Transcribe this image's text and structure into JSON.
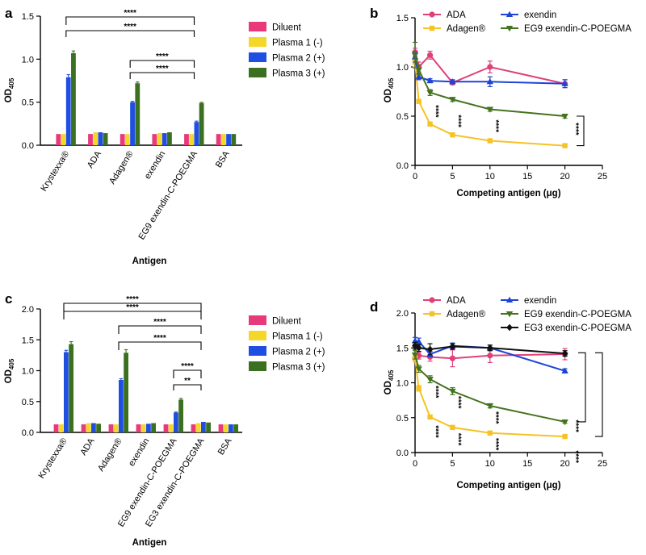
{
  "colors": {
    "Diluent": "#e8397a",
    "Plasma 1 (-)": "#f5d72a",
    "Plasma 2 (+)": "#1f4fe0",
    "Plasma 3 (+)": "#3b7020",
    "ADA": "#e0407a",
    "Adagen": "#f6c225",
    "exendin": "#1c44d6",
    "EG9 exendin-C-POEGMA": "#44731f",
    "EG3 exendin-C-POEGMA": "#111111"
  },
  "chart_data": [
    {
      "panel": "a",
      "type": "bar",
      "xlabel": "Antigen",
      "ylabel": "OD",
      "ylabel_sub": "405",
      "ylim": [
        0,
        1.5
      ],
      "yticks": [
        "0.0",
        "0.5",
        "1.0",
        "1.5"
      ],
      "categories": [
        "Krystexxa®",
        "ADA",
        "Adagen®",
        "exendin",
        "EG9 exendin-C-POEGMA",
        "BSA"
      ],
      "series": [
        {
          "name": "Diluent",
          "values": [
            0.13,
            0.13,
            0.13,
            0.13,
            0.13,
            0.13
          ],
          "errors": [
            0.004,
            0.004,
            0.004,
            0.004,
            0.004,
            0.004
          ]
        },
        {
          "name": "Plasma 1 (-)",
          "values": [
            0.13,
            0.15,
            0.13,
            0.14,
            0.13,
            0.13
          ],
          "errors": [
            0.004,
            0.005,
            0.004,
            0.004,
            0.004,
            0.004
          ]
        },
        {
          "name": "Plasma 2 (+)",
          "values": [
            0.79,
            0.15,
            0.5,
            0.14,
            0.27,
            0.13
          ],
          "errors": [
            0.03,
            0.005,
            0.01,
            0.004,
            0.01,
            0.004
          ]
        },
        {
          "name": "Plasma 3 (+)",
          "values": [
            1.07,
            0.14,
            0.72,
            0.15,
            0.49,
            0.13
          ],
          "errors": [
            0.025,
            0.005,
            0.015,
            0.005,
            0.008,
            0.004
          ]
        }
      ],
      "legend": [
        "Diluent",
        "Plasma 1 (-)",
        "Plasma 2 (+)",
        "Plasma 3 (+)"
      ],
      "brackets": [
        {
          "from": 0,
          "to": 4,
          "label": "****"
        },
        {
          "from": 0,
          "to": 4,
          "label": "****"
        },
        {
          "from": 2,
          "to": 4,
          "label": "****"
        },
        {
          "from": 2,
          "to": 4,
          "label": "****"
        }
      ]
    },
    {
      "panel": "b",
      "type": "line",
      "xlabel": "Competing antigen (μg)",
      "ylabel": "OD",
      "ylabel_sub": "405",
      "xlim": [
        0,
        25
      ],
      "ylim": [
        0,
        1.5
      ],
      "xticks": [
        "0",
        "5",
        "10",
        "15",
        "20",
        "25"
      ],
      "yticks": [
        "0.0",
        "0.5",
        "1.0",
        "1.5"
      ],
      "x": [
        0,
        0.5,
        2,
        5,
        10,
        20
      ],
      "series": [
        {
          "name": "ADA",
          "marker": "circle",
          "values": [
            1.15,
            1.0,
            1.12,
            0.84,
            1.0,
            0.83
          ],
          "errors": [
            0.04,
            0.05,
            0.04,
            0.02,
            0.06,
            0.04
          ]
        },
        {
          "name": "Adagen®",
          "marker": "square",
          "values": [
            1.05,
            0.65,
            0.42,
            0.31,
            0.25,
            0.2
          ],
          "errors": [
            0.05,
            0.02,
            0.02,
            0.01,
            0.01,
            0.01
          ]
        },
        {
          "name": "exendin",
          "marker": "triangle-up",
          "values": [
            1.1,
            0.9,
            0.86,
            0.85,
            0.85,
            0.83
          ],
          "errors": [
            0.05,
            0.03,
            0.02,
            0.02,
            0.05,
            0.04
          ]
        },
        {
          "name": "EG9 exendin-C-POEGMA",
          "marker": "triangle-down",
          "values": [
            1.12,
            0.97,
            0.74,
            0.67,
            0.57,
            0.5
          ],
          "errors": [
            0.13,
            0.05,
            0.03,
            0.02,
            0.02,
            0.02
          ]
        }
      ],
      "legend": [
        "ADA",
        "Adagen®",
        "exendin",
        "EG9 exendin-C-POEGMA"
      ],
      "annotations": [
        {
          "x": 2,
          "y": 0.55,
          "label": "****"
        },
        {
          "x": 5,
          "y": 0.45,
          "label": "****"
        },
        {
          "x": 10,
          "y": 0.4,
          "label": "****"
        },
        {
          "x": 20.7,
          "y": 0.37,
          "label": "****"
        }
      ],
      "right_brackets": [
        {
          "y_top": 0.5,
          "y_bottom": 0.2
        }
      ]
    },
    {
      "panel": "c",
      "type": "bar",
      "xlabel": "Antigen",
      "ylabel": "OD",
      "ylabel_sub": "405",
      "ylim": [
        0,
        2.0
      ],
      "yticks": [
        "0.0",
        "0.5",
        "1.0",
        "1.5",
        "2.0"
      ],
      "categories": [
        "Krystexxa®",
        "ADA",
        "Adagen®",
        "exendin",
        "EG9 exendin-C-POEGMA",
        "EG3 exendin-C-POEGMA",
        "BSA"
      ],
      "series": [
        {
          "name": "Diluent",
          "values": [
            0.13,
            0.13,
            0.13,
            0.13,
            0.13,
            0.13,
            0.13
          ],
          "errors": [
            0.004,
            0.004,
            0.004,
            0.004,
            0.004,
            0.004,
            0.004
          ]
        },
        {
          "name": "Plasma 1 (-)",
          "values": [
            0.13,
            0.15,
            0.13,
            0.13,
            0.13,
            0.15,
            0.13
          ],
          "errors": [
            0.004,
            0.005,
            0.004,
            0.004,
            0.004,
            0.005,
            0.004
          ]
        },
        {
          "name": "Plasma 2 (+)",
          "values": [
            1.3,
            0.15,
            0.85,
            0.14,
            0.32,
            0.17,
            0.13
          ],
          "errors": [
            0.03,
            0.005,
            0.02,
            0.004,
            0.01,
            0.005,
            0.004
          ]
        },
        {
          "name": "Plasma 3 (+)",
          "values": [
            1.43,
            0.14,
            1.29,
            0.15,
            0.53,
            0.16,
            0.13
          ],
          "errors": [
            0.04,
            0.005,
            0.05,
            0.005,
            0.02,
            0.005,
            0.004
          ]
        }
      ],
      "legend": [
        "Diluent",
        "Plasma 1 (-)",
        "Plasma 2 (+)",
        "Plasma 3 (+)"
      ],
      "brackets": [
        {
          "from": 0,
          "to": 5,
          "label": "****"
        },
        {
          "from": 0,
          "to": 5,
          "label": "****"
        },
        {
          "from": 2,
          "to": 5,
          "label": "****"
        },
        {
          "from": 2,
          "to": 5,
          "label": "****"
        },
        {
          "from": 4,
          "to": 5,
          "label": "****"
        },
        {
          "from": 4,
          "to": 5,
          "label": "**"
        }
      ]
    },
    {
      "panel": "d",
      "type": "line",
      "xlabel": "Competing antigen (μg)",
      "ylabel": "OD",
      "ylabel_sub": "405",
      "xlim": [
        0,
        25
      ],
      "ylim": [
        0,
        2.0
      ],
      "xticks": [
        "0",
        "5",
        "10",
        "15",
        "20",
        "25"
      ],
      "yticks": [
        "0.0",
        "0.5",
        "1.0",
        "1.5",
        "2.0"
      ],
      "x": [
        0,
        0.5,
        2,
        5,
        10,
        20
      ],
      "series": [
        {
          "name": "ADA",
          "marker": "circle",
          "values": [
            1.35,
            1.39,
            1.37,
            1.35,
            1.39,
            1.41
          ],
          "errors": [
            0.05,
            0.05,
            0.06,
            0.12,
            0.1,
            0.08
          ]
        },
        {
          "name": "Adagen®",
          "marker": "square",
          "values": [
            1.35,
            0.92,
            0.51,
            0.36,
            0.28,
            0.23
          ],
          "errors": [
            0.05,
            0.04,
            0.02,
            0.02,
            0.01,
            0.01
          ]
        },
        {
          "name": "exendin",
          "marker": "triangle-up",
          "values": [
            1.6,
            1.59,
            1.41,
            1.53,
            1.5,
            1.17
          ],
          "errors": [
            0.05,
            0.05,
            0.04,
            0.04,
            0.04,
            0.03
          ]
        },
        {
          "name": "EG9 exendin-C-POEGMA",
          "marker": "triangle-down",
          "values": [
            1.4,
            1.2,
            1.05,
            0.88,
            0.67,
            0.44
          ],
          "errors": [
            0.06,
            0.05,
            0.05,
            0.05,
            0.03,
            0.02
          ]
        },
        {
          "name": "EG3 exendin-C-POEGMA",
          "marker": "diamond",
          "values": [
            1.53,
            1.5,
            1.48,
            1.52,
            1.5,
            1.42
          ],
          "errors": [
            0.05,
            0.05,
            0.08,
            0.04,
            0.04,
            0.04
          ]
        }
      ],
      "legend": [
        "ADA",
        "Adagen®",
        "exendin",
        "EG9 exendin-C-POEGMA",
        "EG3 exendin-C-POEGMA"
      ],
      "annotations": [
        {
          "x": 2,
          "y": 0.87,
          "label": "****"
        },
        {
          "x": 5,
          "y": 0.72,
          "label": "****"
        },
        {
          "x": 10,
          "y": 0.5,
          "label": "****"
        },
        {
          "x": 20.7,
          "y": 0.38,
          "label": "****"
        },
        {
          "x": 2,
          "y": 0.3,
          "label": "****"
        },
        {
          "x": 5,
          "y": 0.19,
          "label": "****"
        },
        {
          "x": 10,
          "y": 0.12,
          "label": "****"
        },
        {
          "x": 20.7,
          "y": -0.06,
          "label": "****"
        }
      ],
      "right_brackets": [
        {
          "y_top": 1.43,
          "y_bottom": 0.44
        },
        {
          "y_top": 1.43,
          "y_bottom": 0.23
        }
      ]
    }
  ]
}
